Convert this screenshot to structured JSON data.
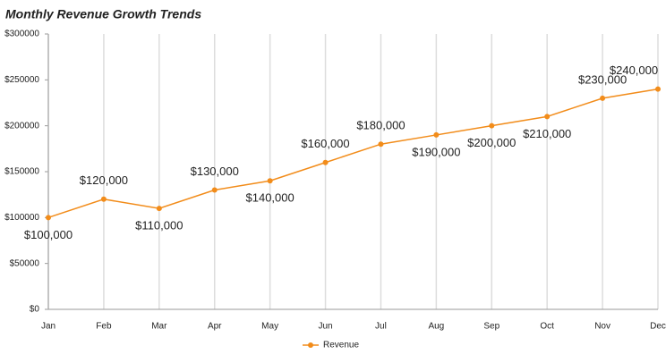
{
  "chart_data": {
    "type": "line",
    "title": "Monthly Revenue Growth Trends",
    "categories": [
      "Jan",
      "Feb",
      "Mar",
      "Apr",
      "May",
      "Jun",
      "Jul",
      "Aug",
      "Sep",
      "Oct",
      "Nov",
      "Dec"
    ],
    "series": [
      {
        "name": "Revenue",
        "color": "#f28c1a",
        "values": [
          100000,
          120000,
          110000,
          130000,
          140000,
          160000,
          180000,
          190000,
          200000,
          210000,
          230000,
          240000
        ],
        "value_labels": [
          "$100,000",
          "$120,000",
          "$110,000",
          "$130,000",
          "$140,000",
          "$160,000",
          "$180,000",
          "$190,000",
          "$200,000",
          "$210,000",
          "$230,000",
          "$240,000"
        ]
      }
    ],
    "ylim": [
      0,
      300000
    ],
    "yticks": [
      {
        "value": 0,
        "label": "$0"
      },
      {
        "value": 50000,
        "label": "$50000"
      },
      {
        "value": 100000,
        "label": "$100000"
      },
      {
        "value": 150000,
        "label": "$150000"
      },
      {
        "value": 200000,
        "label": "$200000"
      },
      {
        "value": 250000,
        "label": "$250000"
      },
      {
        "value": 300000,
        "label": "$300000"
      }
    ],
    "grid": true,
    "legend": "bottom"
  }
}
